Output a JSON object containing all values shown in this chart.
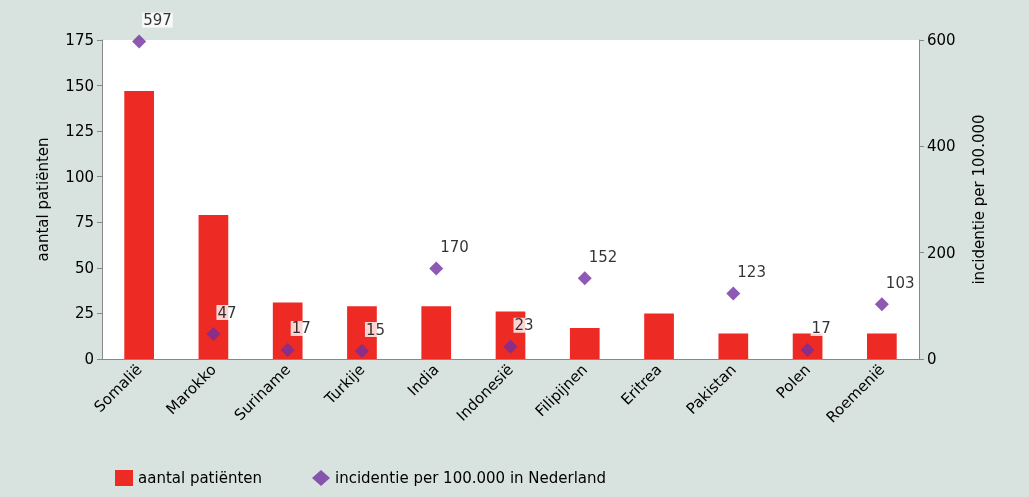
{
  "chart_data": {
    "type": "bar",
    "categories": [
      "Somalië",
      "Marokko",
      "Suriname",
      "Turkije",
      "India",
      "Indonesië",
      "Filipijnen",
      "Eritrea",
      "Pakistan",
      "Polen",
      "Roemenië"
    ],
    "ylabel": "aantal patiënten",
    "y2label": "incidentie per 100.000",
    "ylim": [
      0,
      175
    ],
    "yticks": [
      0,
      25,
      50,
      75,
      100,
      125,
      150,
      175
    ],
    "y2lim": [
      0,
      600
    ],
    "y2ticks": [
      0,
      200,
      400,
      600
    ],
    "legend": "bottom left",
    "grid": false,
    "series": [
      {
        "name": "aantal patiënten",
        "color": "#ee2a24",
        "values": [
          147,
          79,
          31,
          29,
          29,
          26,
          17,
          25,
          14,
          14,
          14
        ]
      },
      {
        "name": "incidentie per 100.000 in Nederland",
        "type": "scatter",
        "axis": "y2",
        "marker": "diamond",
        "color": "#7030a0",
        "values": [
          597,
          47,
          17,
          15,
          170,
          23,
          152,
          null,
          123,
          17,
          103
        ],
        "value_labels": [
          "597",
          "47",
          "17",
          "15",
          "170",
          "23",
          "152",
          null,
          "123",
          "17",
          "103"
        ]
      }
    ]
  }
}
